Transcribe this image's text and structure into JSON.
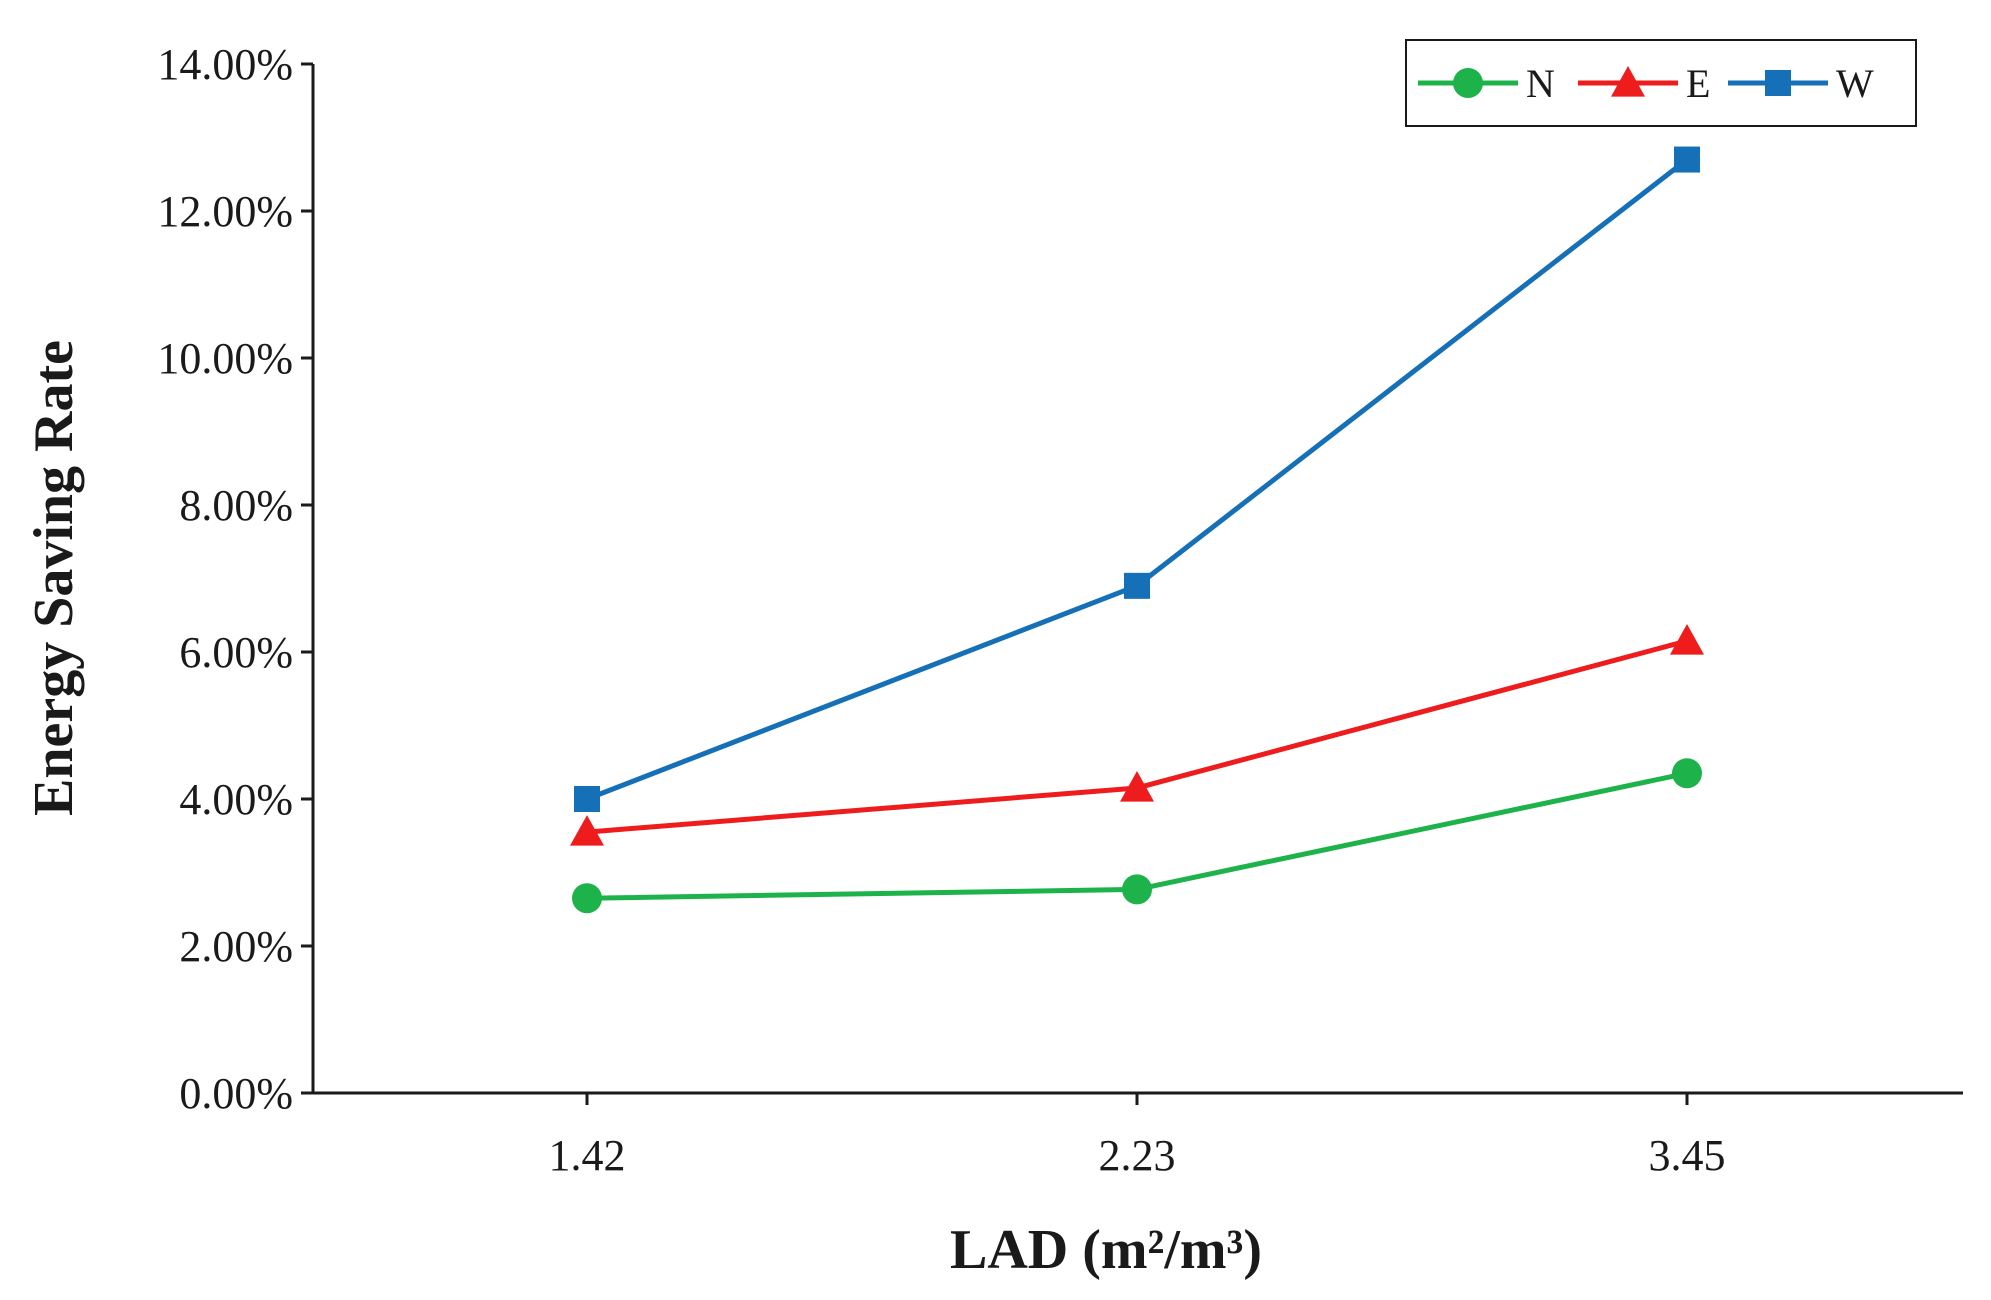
{
  "chart_data": {
    "type": "line",
    "title": "",
    "xlabel": "LAD (m²/m³)",
    "ylabel": "Energy Saving Rate",
    "categories": [
      "1.42",
      "2.23",
      "3.45"
    ],
    "ylim": [
      0,
      0.14
    ],
    "yticks": [
      0,
      0.02,
      0.04,
      0.06,
      0.08,
      0.1,
      0.12,
      0.14
    ],
    "ytick_labels": [
      "0.00%",
      "2.00%",
      "4.00%",
      "6.00%",
      "8.00%",
      "10.00%",
      "12.00%",
      "14.00%"
    ],
    "grid": false,
    "legend_position": "top-right",
    "series": [
      {
        "name": "N",
        "marker": "circle",
        "color": "#1db34a",
        "values": [
          0.0265,
          0.0277,
          0.0435
        ]
      },
      {
        "name": "E",
        "marker": "triangle",
        "color": "#ee1c1c",
        "values": [
          0.0355,
          0.0415,
          0.0615
        ]
      },
      {
        "name": "W",
        "marker": "square",
        "color": "#1570b8",
        "values": [
          0.04,
          0.069,
          0.127
        ]
      }
    ]
  }
}
